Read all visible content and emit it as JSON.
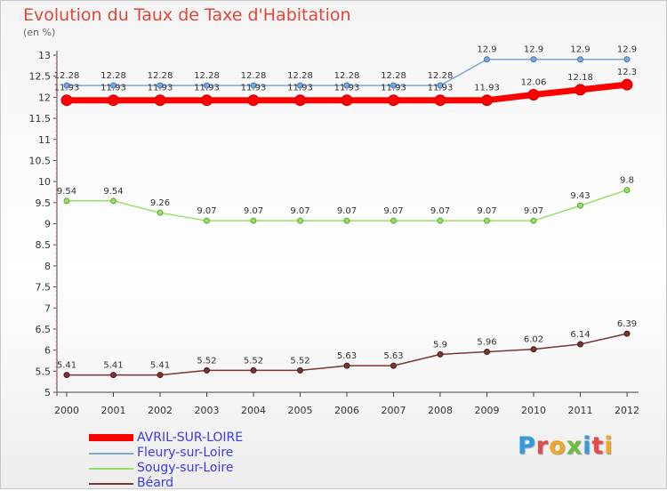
{
  "title": "Evolution du Taux de Taxe d'Habitation",
  "subtitle": "(en %)",
  "logo": {
    "text": "Proxiti",
    "letters": [
      {
        "ch": "P",
        "color": "#2f9be0"
      },
      {
        "ch": "r",
        "color": "#e8484a"
      },
      {
        "ch": "o",
        "color": "#f4a623"
      },
      {
        "ch": "x",
        "color": "#6bbf3a"
      },
      {
        "ch": "i",
        "color": "#2f9be0"
      },
      {
        "ch": "t",
        "color": "#e8484a"
      },
      {
        "ch": "i",
        "color": "#f4a623"
      }
    ]
  },
  "chart_data": {
    "type": "line",
    "title": "Evolution du Taux de Taxe d'Habitation",
    "ylabel": "(en %)",
    "xlabel": "",
    "x": [
      "2000",
      "2001",
      "2002",
      "2003",
      "2004",
      "2005",
      "2006",
      "2007",
      "2008",
      "2009",
      "2010",
      "2011",
      "2012"
    ],
    "ylim": [
      5,
      13
    ],
    "yticks": [
      "5",
      "5.5",
      "6",
      "6.5",
      "7",
      "7.5",
      "8",
      "8.5",
      "9",
      "9.5",
      "10",
      "10.5",
      "11",
      "11.5",
      "12",
      "12.5",
      "13"
    ],
    "grid": false,
    "legend_position": "bottom-left",
    "series": [
      {
        "name": "AVRIL-SUR-LOIRE",
        "color": "#ff0000",
        "width": 7,
        "marker": 6,
        "values": [
          11.93,
          11.93,
          11.93,
          11.93,
          11.93,
          11.93,
          11.93,
          11.93,
          11.93,
          11.93,
          12.06,
          12.18,
          12.3
        ],
        "labels": [
          "11.93",
          "11.93",
          "11.93",
          "11.93",
          "11.93",
          "11.93",
          "11.93",
          "11.93",
          "11.93",
          "11.93",
          "12.06",
          "12.18",
          "12.3"
        ]
      },
      {
        "name": "Fleury-sur-Loire",
        "color": "#7aa7d6",
        "width": 1.5,
        "marker": 3,
        "values": [
          12.28,
          12.28,
          12.28,
          12.28,
          12.28,
          12.28,
          12.28,
          12.28,
          12.28,
          12.9,
          12.9,
          12.9,
          12.9
        ],
        "labels": [
          "12.28",
          "12.28",
          "12.28",
          "12.28",
          "12.28",
          "12.28",
          "12.28",
          "12.28",
          "12.28",
          "12.9",
          "12.9",
          "12.9",
          "12.9"
        ]
      },
      {
        "name": "Sougy-sur-Loire",
        "color": "#99dd66",
        "width": 1.5,
        "marker": 3,
        "values": [
          9.54,
          9.54,
          9.26,
          9.07,
          9.07,
          9.07,
          9.07,
          9.07,
          9.07,
          9.07,
          9.07,
          9.43,
          9.8
        ],
        "labels": [
          "9.54",
          "9.54",
          "9.26",
          "9.07",
          "9.07",
          "9.07",
          "9.07",
          "9.07",
          "9.07",
          "9.07",
          "9.07",
          "9.43",
          "9.8"
        ]
      },
      {
        "name": "Béard",
        "color": "#7a3535",
        "width": 1.5,
        "marker": 3,
        "values": [
          5.41,
          5.41,
          5.41,
          5.52,
          5.52,
          5.52,
          5.63,
          5.63,
          5.9,
          5.96,
          6.02,
          6.14,
          6.39
        ],
        "labels": [
          "5.41",
          "5.41",
          "5.41",
          "5.52",
          "5.52",
          "5.52",
          "5.63",
          "5.63",
          "5.9",
          "5.96",
          "6.02",
          "6.14",
          "6.39"
        ]
      }
    ]
  }
}
